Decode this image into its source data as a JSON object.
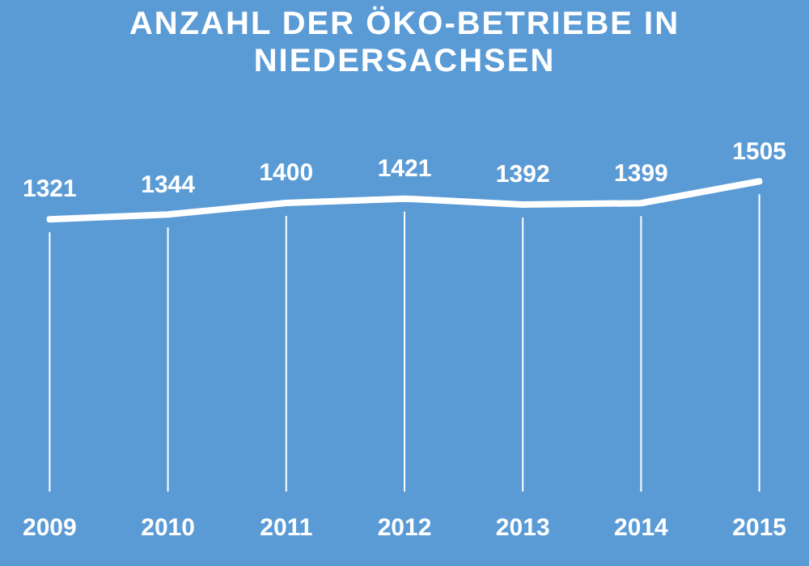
{
  "chart_data": {
    "type": "line",
    "title": "ANZAHL DER ÖKO-BETRIEBE IN NIEDERSACHSEN",
    "categories": [
      "2009",
      "2010",
      "2011",
      "2012",
      "2013",
      "2014",
      "2015"
    ],
    "series": [
      {
        "color": "#ffffff",
        "values": [
          1321,
          1344,
          1400,
          1421,
          1392,
          1399,
          1505
        ]
      }
    ],
    "data_labels": true,
    "legend": false,
    "grid": "x",
    "line_style": "solid",
    "tick_labels": "x"
  }
}
